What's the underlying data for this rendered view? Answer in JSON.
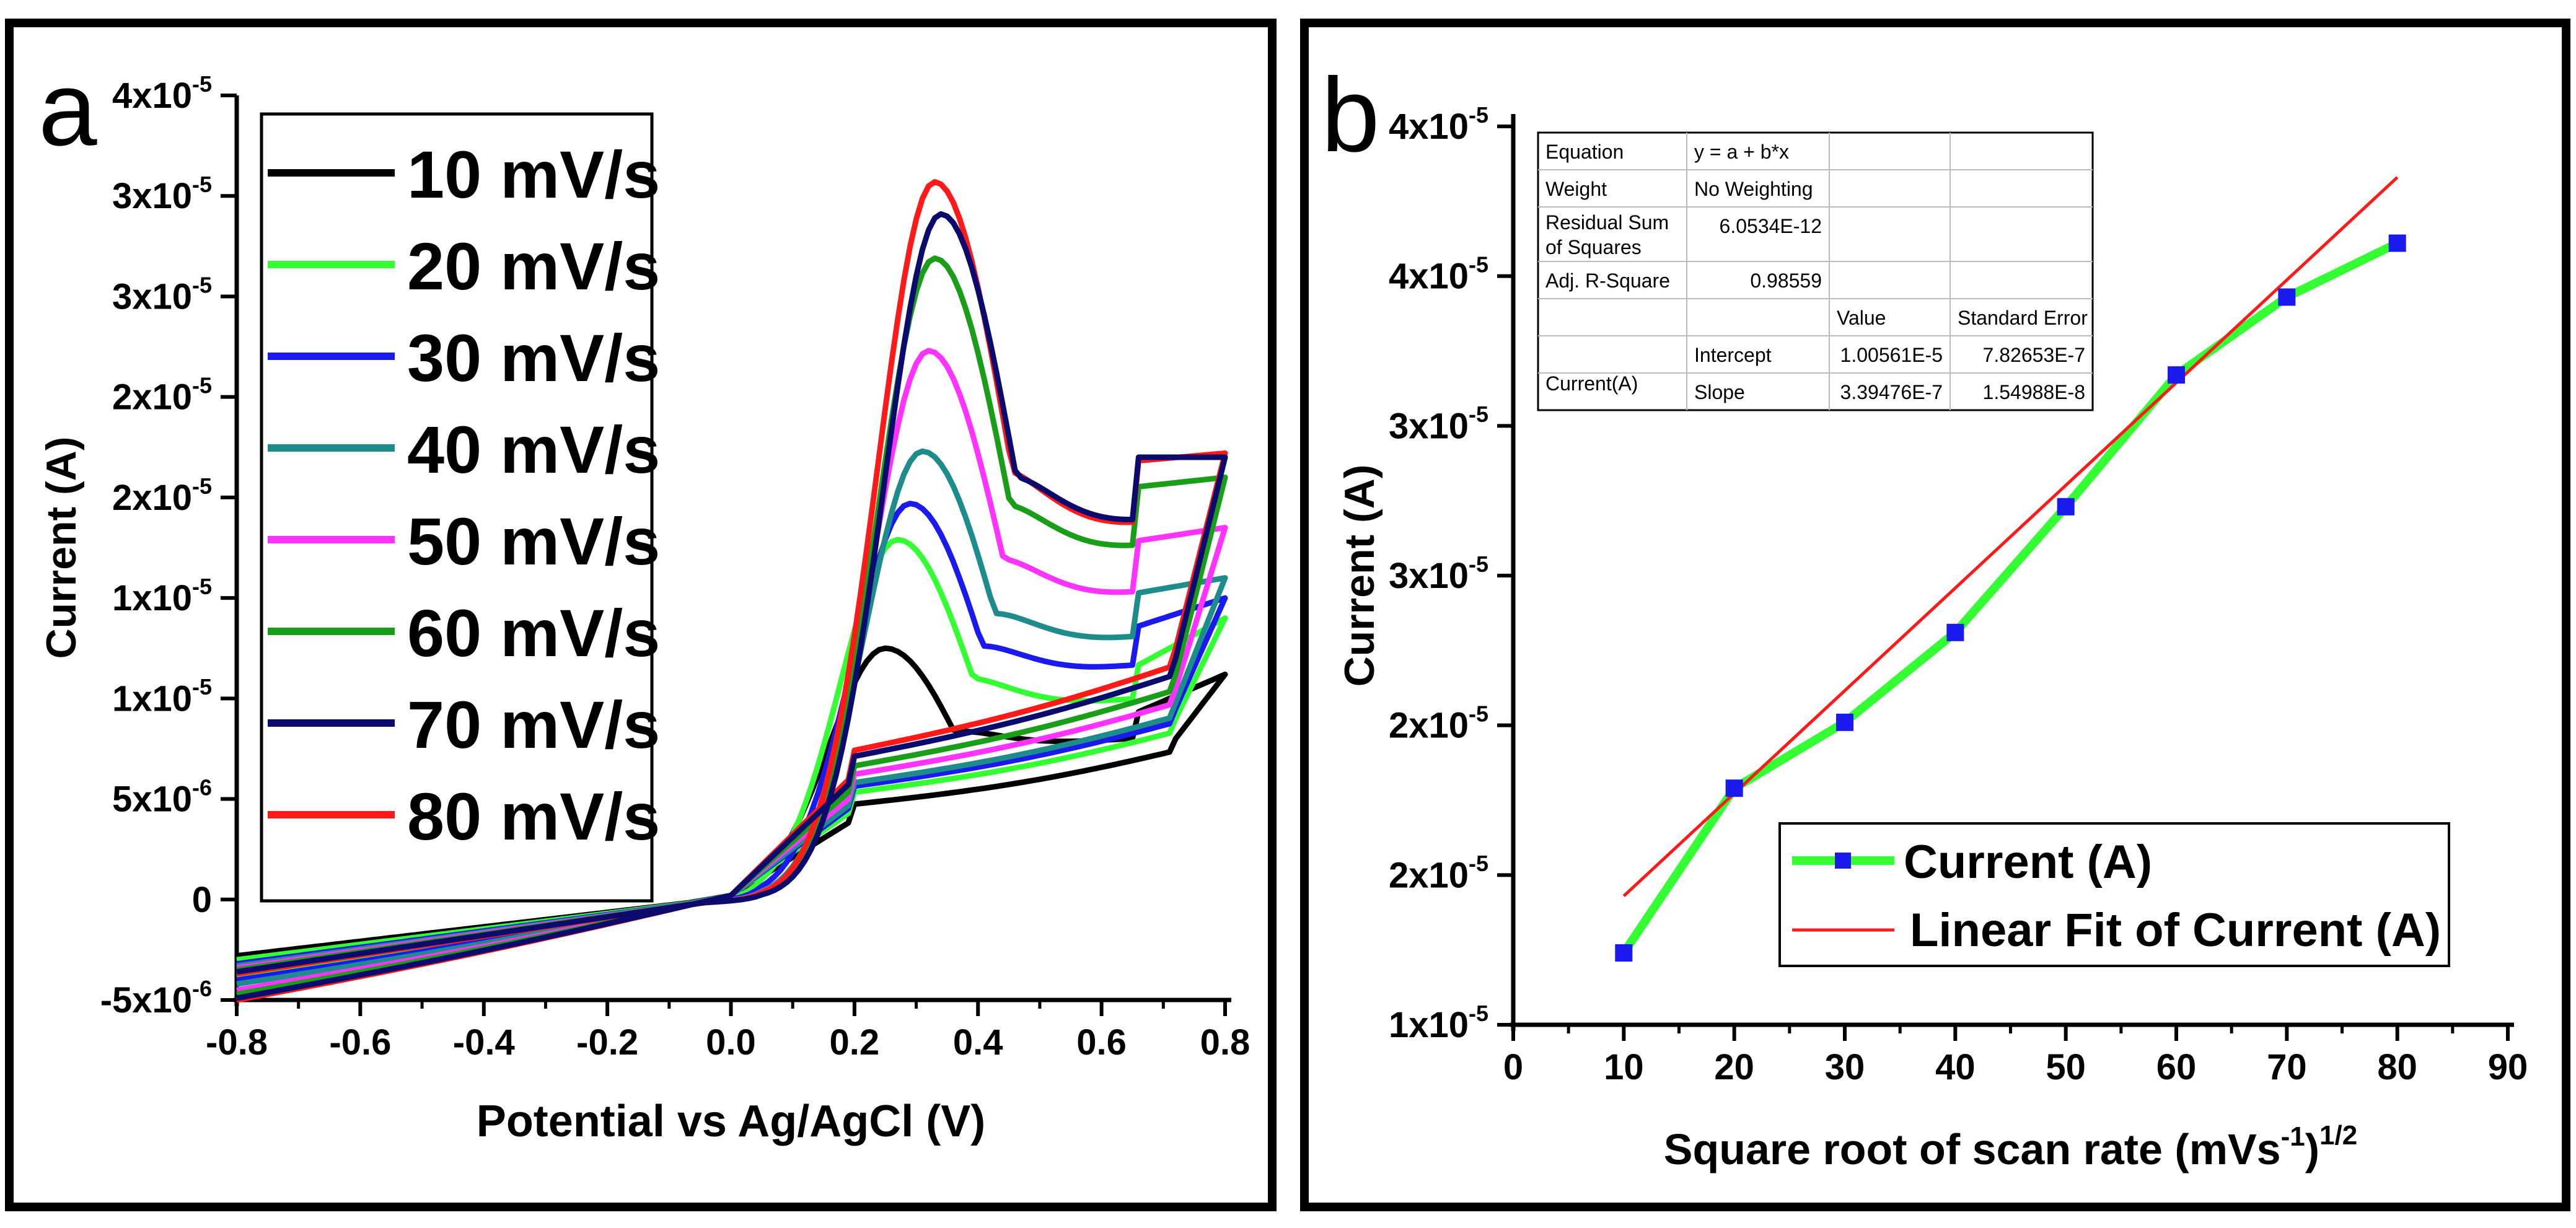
{
  "chart_data": [
    {
      "panel": "a",
      "type": "line",
      "panel_letter": "a",
      "xlabel": "Potential vs Ag/AgCl (V)",
      "ylabel": "Current (A)",
      "xlim": [
        -0.8,
        0.8
      ],
      "ylim": [
        -5e-06,
        4e-05
      ],
      "x_ticks": [
        "-0.8",
        "-0.6",
        "-0.4",
        "-0.2",
        "0.0",
        "0.2",
        "0.4",
        "0.6",
        "0.8"
      ],
      "y_ticks": [
        {
          "base": "-5x10",
          "exp": "-6",
          "value": -5e-06
        },
        {
          "base": "0",
          "exp": "",
          "value": 0
        },
        {
          "base": "5x10",
          "exp": "-6",
          "value": 5e-06
        },
        {
          "base": "1x10",
          "exp": "-5",
          "value": 1e-05
        },
        {
          "base": "1x10",
          "exp": "-5",
          "value": 1.5e-05
        },
        {
          "base": "2x10",
          "exp": "-5",
          "value": 2e-05
        },
        {
          "base": "2x10",
          "exp": "-5",
          "value": 2.5e-05
        },
        {
          "base": "3x10",
          "exp": "-5",
          "value": 3e-05
        },
        {
          "base": "3x10",
          "exp": "-5",
          "value": 3.5e-05
        },
        {
          "base": "4x10",
          "exp": "-5",
          "value": 4e-05
        }
      ],
      "legend_position": "top-left",
      "series": [
        {
          "name": "10 mV/s",
          "color": "#000000",
          "peak_x": 0.25,
          "peak_y": 1.25e-05,
          "end_high": 1.12e-05,
          "end_low": 8e-06,
          "rev_top": 9.2e-06,
          "start_low": -3.5e-06,
          "start_high": -2.8e-06
        },
        {
          "name": "20 mV/s",
          "color": "#33ff33",
          "peak_x": 0.27,
          "peak_y": 1.79e-05,
          "end_high": 1.4e-05,
          "end_low": 9e-06,
          "rev_top": 1.15e-05,
          "start_low": -3.8e-06,
          "start_high": -3e-06
        },
        {
          "name": "30 mV/s",
          "color": "#1a1aee",
          "peak_x": 0.29,
          "peak_y": 1.97e-05,
          "end_high": 1.5e-05,
          "end_low": 9.5e-06,
          "rev_top": 1.35e-05,
          "start_low": -4e-06,
          "start_high": -3.2e-06
        },
        {
          "name": "40 mV/s",
          "color": "#1f8c8c",
          "peak_x": 0.31,
          "peak_y": 2.23e-05,
          "end_high": 1.6e-05,
          "end_low": 9.8e-06,
          "rev_top": 1.52e-05,
          "start_low": -4.2e-06,
          "start_high": -3.3e-06
        },
        {
          "name": "50 mV/s",
          "color": "#ff33ff",
          "peak_x": 0.32,
          "peak_y": 2.73e-05,
          "end_high": 1.85e-05,
          "end_low": 1.05e-05,
          "rev_top": 1.78e-05,
          "start_low": -4.5e-06,
          "start_high": -3.4e-06
        },
        {
          "name": "60 mV/s",
          "color": "#1a9e1a",
          "peak_x": 0.33,
          "peak_y": 3.19e-05,
          "end_high": 2.1e-05,
          "end_low": 1.12e-05,
          "rev_top": 2.05e-05,
          "start_low": -4.7e-06,
          "start_high": -3.5e-06
        },
        {
          "name": "70 mV/s",
          "color": "#0b0b6e",
          "peak_x": 0.34,
          "peak_y": 3.41e-05,
          "end_high": 2.2e-05,
          "end_low": 1.2e-05,
          "rev_top": 2.2e-05,
          "start_low": -4.9e-06,
          "start_high": -3.6e-06
        },
        {
          "name": "80 mV/s",
          "color": "#ff1a1a",
          "peak_x": 0.33,
          "peak_y": 3.57e-05,
          "end_high": 2.22e-05,
          "end_low": 1.25e-05,
          "rev_top": 2.18e-05,
          "start_low": -5e-06,
          "start_high": -3.7e-06
        }
      ]
    },
    {
      "panel": "b",
      "type": "scatter",
      "panel_letter": "b",
      "xlabel": "Square root of scan rate (mVs",
      "xlabel_sup1": "-1",
      "xlabel_mid": ")",
      "xlabel_sup2": "1/2",
      "ylabel": "Current (A)",
      "xlim": [
        0,
        90
      ],
      "ylim": [
        1e-05,
        4e-05
      ],
      "x_ticks": [
        "0",
        "10",
        "20",
        "30",
        "40",
        "50",
        "60",
        "70",
        "80",
        "90"
      ],
      "y_ticks": [
        {
          "base": "1x10",
          "exp": "-5",
          "value": 1e-05
        },
        {
          "base": "2x10",
          "exp": "-5",
          "value": 1.5e-05
        },
        {
          "base": "2x10",
          "exp": "-5",
          "value": 2e-05
        },
        {
          "base": "3x10",
          "exp": "-5",
          "value": 2.5e-05
        },
        {
          "base": "3x10",
          "exp": "-5",
          "value": 3e-05
        },
        {
          "base": "4x10",
          "exp": "-5",
          "value": 3.5e-05
        },
        {
          "base": "4x10",
          "exp": "-5",
          "value": 4e-05
        }
      ],
      "series": [
        {
          "name": "Current (A)",
          "color": "#33ff33",
          "marker_color": "#1a1aee",
          "x": [
            10,
            20,
            30,
            40,
            50,
            60,
            70,
            80
          ],
          "y": [
            1.24e-05,
            1.79e-05,
            2.01e-05,
            2.31e-05,
            2.73e-05,
            3.17e-05,
            3.43e-05,
            3.61e-05
          ]
        },
        {
          "name": "Linear Fit of Current (A)",
          "color": "#ff1a1a",
          "intercept": 1.00561e-05,
          "slope": 3.39476e-07,
          "x_range": [
            10,
            80
          ]
        }
      ],
      "legend_position": "bottom-right",
      "fit_table": {
        "rows": [
          [
            "Equation",
            "y = a + b*x",
            "",
            ""
          ],
          [
            "Weight",
            "No Weighting",
            "",
            ""
          ],
          [
            "Residual Sum of Squares",
            "6.0534E-12",
            "",
            ""
          ],
          [
            "Adj. R-Square",
            "0.98559",
            "",
            ""
          ],
          [
            "",
            "",
            "Value",
            "Standard Error"
          ],
          [
            "Current(A)",
            "Intercept",
            "1.00561E-5",
            "7.82653E-7"
          ],
          [
            "",
            "Slope",
            "3.39476E-7",
            "1.54988E-8"
          ]
        ]
      }
    }
  ]
}
